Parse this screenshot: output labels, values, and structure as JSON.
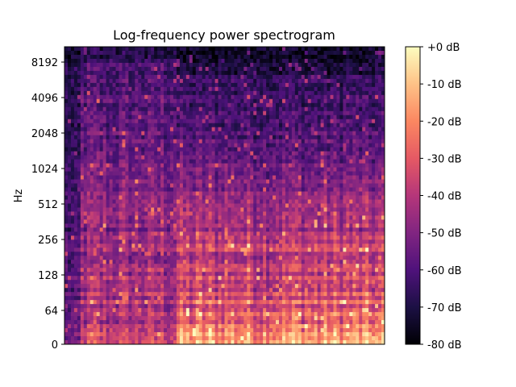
{
  "chart_data": {
    "type": "heatmap",
    "title": "Log-frequency power spectrogram",
    "xlabel": "",
    "ylabel": "Hz",
    "y_scale": "log",
    "y_ticks": [
      "0",
      "64",
      "128",
      "256",
      "512",
      "1024",
      "2048",
      "4096",
      "8192"
    ],
    "x_ticks": [],
    "colorbar": {
      "label": "",
      "ticks": [
        "+0 dB",
        "-10 dB",
        "-20 dB",
        "-30 dB",
        "-40 dB",
        "-50 dB",
        "-60 dB",
        "-70 dB",
        "-80 dB"
      ],
      "range_db": [
        -80,
        0
      ],
      "colormap": "magma"
    },
    "colormap_stops": [
      "#000004",
      "#1c1044",
      "#4f127b",
      "#812581",
      "#b5367a",
      "#e55964",
      "#fb8761",
      "#fec287",
      "#fcfdbf"
    ],
    "notes": "Power spectrogram; values shown as color intensity only"
  }
}
